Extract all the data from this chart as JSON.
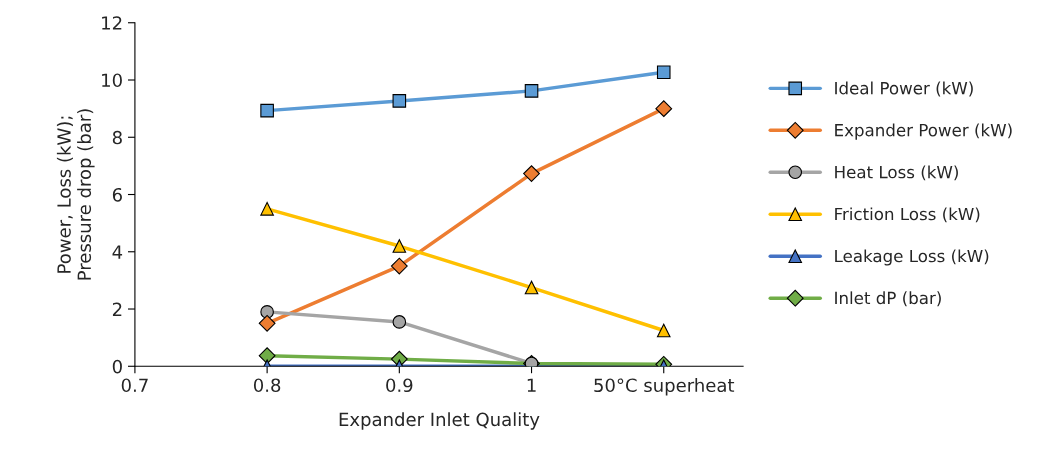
{
  "chart_data": {
    "type": "line",
    "xlabel": "Expander Inlet Quality",
    "ylabel": "Power, Loss (kW);\nPressure drop (bar)",
    "categories": [
      "0.7",
      "0.8",
      "0.9",
      "1",
      "50°C superheat"
    ],
    "ylim": [
      0,
      12
    ],
    "yticks": [
      0,
      2,
      4,
      6,
      8,
      10,
      12
    ],
    "grid": false,
    "legend": "right",
    "series": [
      {
        "name": "Ideal Power (kW)",
        "color": "#5b9bd5",
        "marker": "square",
        "values": [
          null,
          8.93,
          9.27,
          9.62,
          10.27
        ]
      },
      {
        "name": "Expander Power (kW)",
        "color": "#ed7d31",
        "marker": "diamond",
        "values": [
          null,
          1.5,
          3.5,
          6.73,
          9.0
        ]
      },
      {
        "name": "Heat Loss (kW)",
        "color": "#a5a5a5",
        "marker": "circle",
        "values": [
          null,
          1.9,
          1.55,
          0.1,
          null
        ]
      },
      {
        "name": "Friction Loss (kW)",
        "color": "#ffc000",
        "marker": "triangle",
        "values": [
          null,
          5.5,
          4.2,
          2.75,
          1.25
        ]
      },
      {
        "name": "Leakage Loss (kW)",
        "color": "#4472c4",
        "marker": "triangle",
        "values": [
          null,
          0,
          0,
          0,
          0
        ]
      },
      {
        "name": "Inlet dP (bar)",
        "color": "#70ad47",
        "marker": "diamond",
        "values": [
          null,
          0.37,
          0.25,
          0.1,
          0.07
        ]
      }
    ]
  }
}
